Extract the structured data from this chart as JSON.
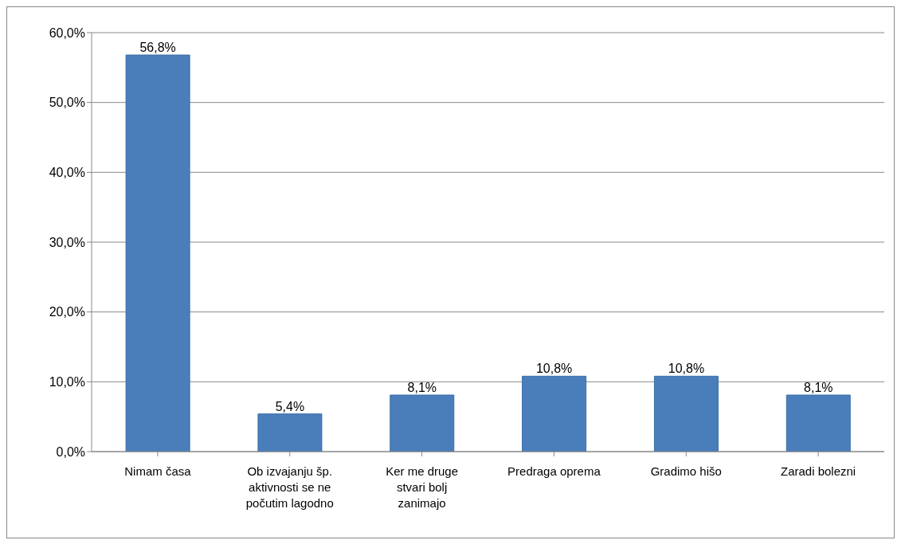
{
  "chart_data": {
    "type": "bar",
    "categories": [
      "Nimam časa",
      "Ob izvajanju šp. aktivnosti se ne počutim lagodno",
      "Ker me druge stvari bolj zanimajo",
      "Predraga oprema",
      "Gradimo hišo",
      "Zaradi bolezni"
    ],
    "values": [
      56.8,
      5.4,
      8.1,
      10.8,
      10.8,
      8.1
    ],
    "value_labels": [
      "56,8%",
      "5,4%",
      "8,1%",
      "10,8%",
      "10,8%",
      "8,1%"
    ],
    "color": "#4a7ebb",
    "ylim": [
      0,
      60
    ],
    "yticks": [
      {
        "value": 0,
        "label": "0,0%"
      },
      {
        "value": 10,
        "label": "10,0%"
      },
      {
        "value": 20,
        "label": "20,0%"
      },
      {
        "value": 30,
        "label": "30,0%"
      },
      {
        "value": 40,
        "label": "40,0%"
      },
      {
        "value": 50,
        "label": "50,0%"
      },
      {
        "value": 60,
        "label": "60,0%"
      }
    ],
    "grid": "y",
    "legend": false
  }
}
